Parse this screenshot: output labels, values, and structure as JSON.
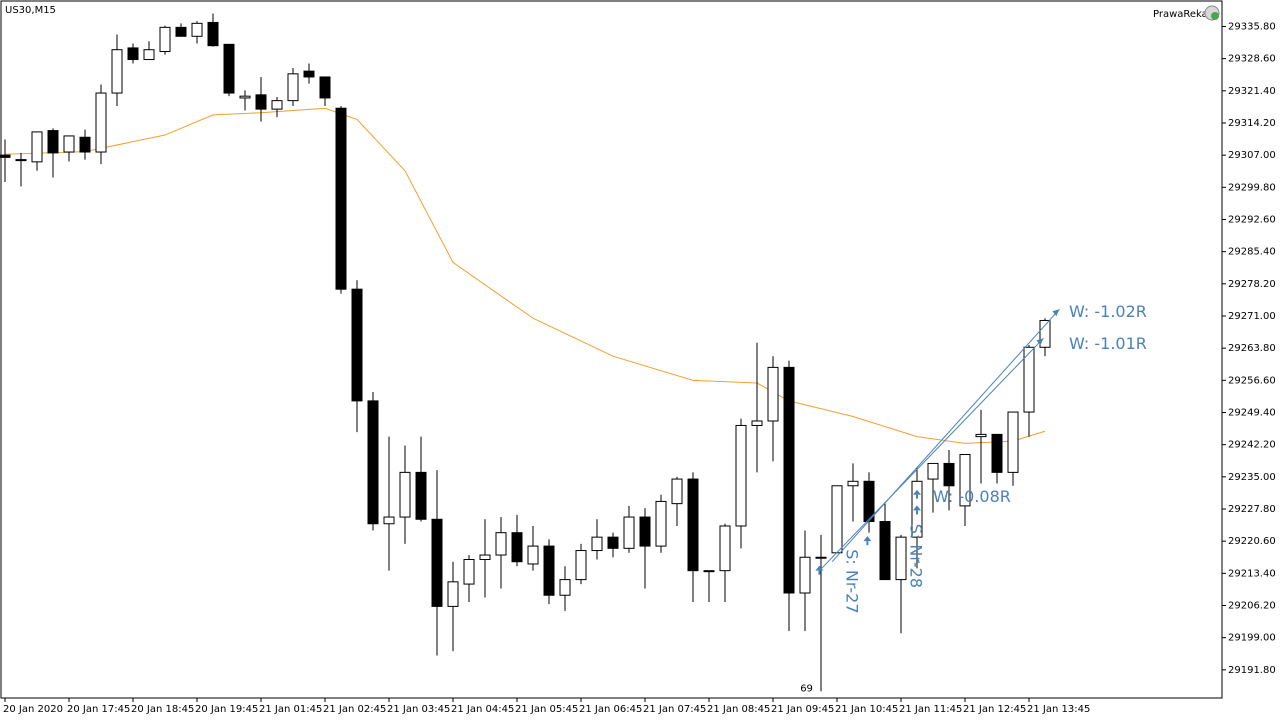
{
  "symbol": "US30,M15",
  "broker": "PrawaReka",
  "colors": {
    "bull_fill": "#ffffff",
    "bear_fill": "#000000",
    "ma": "#f0a030",
    "arrow": "#4a82b8",
    "axis": "#000000"
  },
  "chart_data": {
    "type": "candlestick",
    "title": "US30,M15",
    "ylim": [
      29185.5,
      29341.5
    ],
    "y_ticks": [
      "29335.80",
      "29328.60",
      "29321.40",
      "29314.20",
      "29307.00",
      "29299.80",
      "29292.60",
      "29285.40",
      "29278.20",
      "29271.00",
      "29263.80",
      "29256.60",
      "29249.40",
      "29242.20",
      "29235.00",
      "29227.80",
      "29220.60",
      "29213.40",
      "29206.20",
      "29199.00",
      "29191.80"
    ],
    "x_ticks": [
      "20 Jan 2020",
      "20 Jan 17:45",
      "20 Jan 18:45",
      "20 Jan 19:45",
      "21 Jan 01:45",
      "21 Jan 02:45",
      "21 Jan 03:45",
      "21 Jan 04:45",
      "21 Jan 05:45",
      "21 Jan 06:45",
      "21 Jan 07:45",
      "21 Jan 08:45",
      "21 Jan 09:45",
      "21 Jan 10:45",
      "21 Jan 11:45",
      "21 Jan 12:45",
      "21 Jan 13:45"
    ],
    "candles": [
      [
        29307.0,
        29310.5,
        29301.0,
        29306.5
      ],
      [
        29306.0,
        29307.5,
        29300.0,
        29305.8
      ],
      [
        29305.5,
        29312.0,
        29303.5,
        29312.2
      ],
      [
        29312.5,
        29313.0,
        29302.0,
        29307.5
      ],
      [
        29307.7,
        29311.3,
        29305.6,
        29311.3
      ],
      [
        29311.0,
        29312.7,
        29306.0,
        29307.7
      ],
      [
        29307.7,
        29322.8,
        29305.0,
        29320.9
      ],
      [
        29320.9,
        29334.0,
        29318.0,
        29330.6
      ],
      [
        29331.0,
        29332.0,
        29327.5,
        29328.4
      ],
      [
        29328.4,
        29332.5,
        29328.4,
        29330.6
      ],
      [
        29330.2,
        29336.0,
        29329.5,
        29335.6
      ],
      [
        29335.6,
        29336.5,
        29333.5,
        29333.6
      ],
      [
        29333.6,
        29337.0,
        29332.0,
        29336.5
      ],
      [
        29336.7,
        29338.7,
        29331.3,
        29331.5
      ],
      [
        29331.8,
        29331.8,
        29320.2,
        29320.9
      ],
      [
        29319.8,
        29321.5,
        29317.0,
        29320.2
      ],
      [
        29320.5,
        29324.5,
        29314.5,
        29317.3
      ],
      [
        29317.3,
        29320.0,
        29315.5,
        29319.2
      ],
      [
        29319.2,
        29326.5,
        29318.0,
        29325.2
      ],
      [
        29325.8,
        29327.5,
        29323.0,
        29324.5
      ],
      [
        29324.5,
        29324.5,
        29318.0,
        29319.8
      ],
      [
        29317.5,
        29318.0,
        29276.0,
        29277.0
      ],
      [
        29277.0,
        29279.0,
        29245.0,
        29252.0
      ],
      [
        29252.0,
        29254.0,
        29223.0,
        29224.5
      ],
      [
        29224.5,
        29244.0,
        29214.0,
        29226.0
      ],
      [
        29226.0,
        29242.0,
        29220.0,
        29236.0
      ],
      [
        29236.0,
        29244.0,
        29225.0,
        29225.5
      ],
      [
        29225.5,
        29236.5,
        29195.0,
        29206.0
      ],
      [
        29206.0,
        29216.0,
        29196.0,
        29211.5
      ],
      [
        29211.0,
        29217.5,
        29207.0,
        29216.5
      ],
      [
        29216.5,
        29225.5,
        29208.0,
        29217.5
      ],
      [
        29217.5,
        29226.0,
        29210.0,
        29222.5
      ],
      [
        29222.5,
        29226.5,
        29215.0,
        29216.0
      ],
      [
        29215.5,
        29224.0,
        29214.0,
        29219.5
      ],
      [
        29219.5,
        29221.0,
        29206.5,
        29208.5
      ],
      [
        29208.5,
        29215.0,
        29205.0,
        29212.0
      ],
      [
        29212.0,
        29220.0,
        29211.0,
        29218.5
      ],
      [
        29218.5,
        29225.5,
        29216.5,
        29221.5
      ],
      [
        29221.5,
        29222.5,
        29217.0,
        29219.0
      ],
      [
        29219.0,
        29228.5,
        29218.0,
        29226.0
      ],
      [
        29226.0,
        29228.0,
        29210.0,
        29219.5
      ],
      [
        29219.5,
        29231.0,
        29218.0,
        29229.5
      ],
      [
        29229.0,
        29235.0,
        29224.0,
        29234.5
      ],
      [
        29234.5,
        29236.0,
        29207.0,
        29214.0
      ],
      [
        29214.0,
        29214.0,
        29207.0,
        29214.0
      ],
      [
        29214.0,
        29224.5,
        29207.0,
        29224.0
      ],
      [
        29224.0,
        29248.0,
        29219.0,
        29246.5
      ],
      [
        29246.5,
        29265.0,
        29236.0,
        29247.5
      ],
      [
        29247.5,
        29262.0,
        29238.5,
        29259.5
      ],
      [
        29259.5,
        29261.0,
        29200.5,
        29209.0
      ],
      [
        29209.0,
        29223.0,
        29200.5,
        29217.0
      ],
      [
        29217.0,
        29222.0,
        29187.0,
        29217.0
      ],
      [
        29218.0,
        29233.0,
        29218.0,
        29233.0
      ],
      [
        29233.0,
        29238.0,
        29225.0,
        29234.0
      ],
      [
        29234.0,
        29236.0,
        29222.5,
        29225.0
      ],
      [
        29225.0,
        29229.0,
        29212.0,
        29212.0
      ],
      [
        29212.0,
        29222.0,
        29200.0,
        29221.5
      ],
      [
        29221.5,
        29237.0,
        29214.5,
        29234.0
      ],
      [
        29234.5,
        29237.5,
        29227.0,
        29238.0
      ],
      [
        29238.0,
        29241.0,
        29227.5,
        29233.0
      ],
      [
        29228.5,
        29240.0,
        29224.0,
        29240.0
      ],
      [
        29244.0,
        29250.0,
        29233.5,
        29244.5
      ],
      [
        29244.5,
        29244.5,
        29233.5,
        29236.0
      ],
      [
        29236.0,
        29248.0,
        29233.0,
        29249.5
      ],
      [
        29249.5,
        29264.5,
        29244.0,
        29264.0
      ],
      [
        29264.0,
        29270.5,
        29262.0,
        29270.0
      ]
    ],
    "moving_average": [
      [
        0,
        29307.2
      ],
      [
        5,
        29307.8
      ],
      [
        10,
        29311.5
      ],
      [
        13,
        29316.0
      ],
      [
        16,
        29316.5
      ],
      [
        20,
        29317.5
      ],
      [
        22,
        29315.0
      ],
      [
        25,
        29303.5
      ],
      [
        28,
        29283.0
      ],
      [
        33,
        29270.5
      ],
      [
        38,
        29262.0
      ],
      [
        43,
        29256.6
      ],
      [
        47,
        29256.0
      ],
      [
        49,
        29252.0
      ],
      [
        53,
        29248.5
      ],
      [
        57,
        29244.0
      ],
      [
        60,
        29242.5
      ],
      [
        63,
        29243.0
      ],
      [
        65,
        29245.2
      ]
    ],
    "arrows": [
      {
        "x": 50.9,
        "y": 29214.0
      },
      {
        "x": 53.9,
        "y": 29220.6
      },
      {
        "x": 57.0,
        "y": 29227.5
      },
      {
        "x": 57.0,
        "y": 29231.0
      }
    ],
    "trend_lines": [
      {
        "x1": 50.9,
        "y1": 29214.0,
        "x2": 64.9,
        "y2": 29266.0
      },
      {
        "x1": 51.7,
        "y1": 29216.0,
        "x2": 65.9,
        "y2": 29272.5
      }
    ],
    "annotations": [
      {
        "text": "W: -1.02R",
        "x": 66.5,
        "y": 29270.8,
        "rotate": 0
      },
      {
        "text": "W: -1.01R",
        "x": 66.5,
        "y": 29263.6,
        "rotate": 0
      },
      {
        "text": "W: -0.08R",
        "x": 58.0,
        "y": 29229.4,
        "rotate": 0
      },
      {
        "text": "S: Nr-27",
        "x": 52.6,
        "y": 29218.8,
        "rotate": 90
      },
      {
        "text": "S: Nr-28",
        "x": 56.6,
        "y": 29224.5,
        "rotate": 90
      },
      {
        "text": "69",
        "x": 49.7,
        "y": 29187.0,
        "rotate": 0
      }
    ]
  }
}
